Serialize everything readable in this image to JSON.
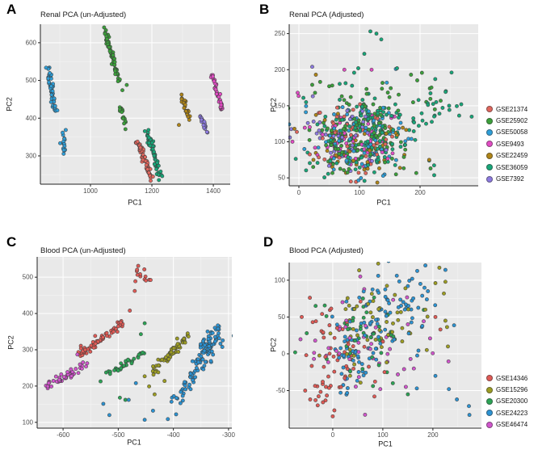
{
  "figure": {
    "panel_labels": [
      "A",
      "B",
      "C",
      "D"
    ],
    "panel_bg": "#e9e9e9",
    "grid_major_color": "#ffffff",
    "grid_minor_color": "#f4f4f4",
    "axis_color": "#222222",
    "tick_label_color": "#4d4d4d",
    "point_radius": 2.1,
    "point_stroke": "#3c3c3c"
  },
  "series_colors": {
    "GSE21374": "#e1665d",
    "GSE25902": "#3ba03a",
    "GSE50058": "#2e9fd9",
    "GSE9493": "#e24bc4",
    "GSE22459": "#b08516",
    "GSE36059": "#17a779",
    "GSE7392": "#8d7ae1",
    "GSE14346": "#e05a55",
    "GSE15296": "#9d9d22",
    "GSE20300": "#2ba455",
    "GSE24223": "#2b93d3",
    "GSE46474": "#d155cd"
  },
  "legends": [
    {
      "id": "renal-legend",
      "items": [
        {
          "label": "GSE21374",
          "color": "#e1665d"
        },
        {
          "label": "GSE25902",
          "color": "#3ba03a"
        },
        {
          "label": "GSE50058",
          "color": "#2e9fd9"
        },
        {
          "label": "GSE9493",
          "color": "#e24bc4"
        },
        {
          "label": "GSE22459",
          "color": "#b08516"
        },
        {
          "label": "GSE36059",
          "color": "#17a779"
        },
        {
          "label": "GSE7392",
          "color": "#8d7ae1"
        }
      ]
    },
    {
      "id": "blood-legend",
      "items": [
        {
          "label": "GSE14346",
          "color": "#e05a55"
        },
        {
          "label": "GSE15296",
          "color": "#9d9d22"
        },
        {
          "label": "GSE20300",
          "color": "#2ba455"
        },
        {
          "label": "GSE24223",
          "color": "#2b93d3"
        },
        {
          "label": "GSE46474",
          "color": "#d155cd"
        }
      ]
    }
  ],
  "chart_data": [
    {
      "panel": "A",
      "type": "scatter",
      "title": "Renal PCA (un-Adjusted)",
      "xlabel": "PC1",
      "ylabel": "PC2",
      "x_ticks": [
        1000,
        1200,
        1400
      ],
      "y_ticks": [
        300,
        400,
        500,
        600
      ],
      "x_range": [
        837,
        1455
      ],
      "y_range": [
        225,
        649
      ],
      "grid": true,
      "legend_position": "none",
      "seed": 7,
      "mix": false,
      "clusters": [
        {
          "kind": "streak",
          "series": "GSE50058",
          "n": 55,
          "x1": 858,
          "y1": 540,
          "x2": 886,
          "y2": 416,
          "jx": 7,
          "jy": 11
        },
        {
          "kind": "blob",
          "series": "GSE50058",
          "n": 16,
          "cx": 913,
          "cy": 330,
          "sx": 5,
          "sy": 15
        },
        {
          "kind": "streak",
          "series": "GSE25902",
          "n": 62,
          "x1": 1048,
          "y1": 628,
          "x2": 1094,
          "y2": 500,
          "jx": 8,
          "jy": 12
        },
        {
          "kind": "streak",
          "series": "GSE25902",
          "n": 15,
          "x1": 1098,
          "y1": 428,
          "x2": 1116,
          "y2": 374,
          "jx": 5,
          "jy": 7
        },
        {
          "kind": "streak",
          "series": "GSE21374",
          "n": 58,
          "x1": 1147,
          "y1": 350,
          "x2": 1200,
          "y2": 240,
          "jx": 7,
          "jy": 9
        },
        {
          "kind": "streak",
          "series": "GSE36059",
          "n": 65,
          "x1": 1185,
          "y1": 365,
          "x2": 1228,
          "y2": 245,
          "jx": 8,
          "jy": 10
        },
        {
          "kind": "streak",
          "series": "GSE22459",
          "n": 28,
          "x1": 1296,
          "y1": 458,
          "x2": 1326,
          "y2": 390,
          "jx": 5,
          "jy": 8
        },
        {
          "kind": "streak",
          "series": "GSE7392",
          "n": 18,
          "x1": 1356,
          "y1": 412,
          "x2": 1378,
          "y2": 366,
          "jx": 4,
          "jy": 6
        },
        {
          "kind": "streak",
          "series": "GSE9493",
          "n": 40,
          "x1": 1398,
          "y1": 514,
          "x2": 1428,
          "y2": 420,
          "jx": 5,
          "jy": 9
        }
      ],
      "outliers": [
        {
          "series": "GSE22459",
          "pts": [
            [
              1288,
              382
            ]
          ]
        },
        {
          "series": "GSE25902",
          "pts": [
            [
              1118,
              488
            ],
            [
              1104,
              474
            ]
          ]
        }
      ]
    },
    {
      "panel": "B",
      "type": "scatter",
      "title": "Renal PCA (Adjusted)",
      "xlabel": "PC1",
      "ylabel": "PC2",
      "x_ticks": [
        0,
        100,
        200
      ],
      "y_ticks": [
        50,
        100,
        150,
        200,
        250
      ],
      "x_range": [
        -16,
        296
      ],
      "y_range": [
        39,
        263
      ],
      "grid": true,
      "legend_position": "right",
      "seed": 13,
      "mix": true,
      "clusters": [
        {
          "kind": "blob",
          "series": "GSE36059",
          "n": 150,
          "cx": 100,
          "cy": 110,
          "sx": 48,
          "sy": 32
        },
        {
          "kind": "blob",
          "series": "GSE36059",
          "n": 16,
          "cx": 235,
          "cy": 150,
          "sx": 30,
          "sy": 18
        },
        {
          "kind": "blob",
          "series": "GSE25902",
          "n": 140,
          "cx": 95,
          "cy": 112,
          "sx": 44,
          "sy": 30
        },
        {
          "kind": "blob",
          "series": "GSE25902",
          "n": 10,
          "cx": 190,
          "cy": 160,
          "sx": 25,
          "sy": 15
        },
        {
          "kind": "blob",
          "series": "GSE50058",
          "n": 85,
          "cx": 100,
          "cy": 103,
          "sx": 38,
          "sy": 24
        },
        {
          "kind": "blob",
          "series": "GSE9493",
          "n": 55,
          "cx": 88,
          "cy": 100,
          "sx": 38,
          "sy": 24
        },
        {
          "kind": "blob",
          "series": "GSE21374",
          "n": 55,
          "cx": 92,
          "cy": 104,
          "sx": 40,
          "sy": 26
        },
        {
          "kind": "blob",
          "series": "GSE22459",
          "n": 50,
          "cx": 95,
          "cy": 102,
          "sx": 42,
          "sy": 26
        },
        {
          "kind": "blob",
          "series": "GSE7392",
          "n": 40,
          "cx": 86,
          "cy": 100,
          "sx": 34,
          "sy": 22
        }
      ],
      "outliers": [
        {
          "series": "GSE36059",
          "pts": [
            [
              118,
              253
            ],
            [
              128,
              250
            ],
            [
              136,
              242
            ],
            [
              108,
              222
            ],
            [
              98,
              202
            ],
            [
              252,
              196
            ],
            [
              225,
              187
            ],
            [
              268,
              152
            ],
            [
              248,
              150
            ],
            [
              232,
              139
            ],
            [
              210,
              125
            ],
            [
              162,
              202
            ],
            [
              215,
              74
            ]
          ]
        },
        {
          "series": "GSE25902",
          "pts": [
            [
              35,
              183
            ],
            [
              22,
              179
            ],
            [
              55,
              178
            ],
            [
              185,
              193
            ]
          ]
        },
        {
          "series": "GSE7392",
          "pts": [
            [
              22,
              204
            ]
          ]
        },
        {
          "series": "GSE22459",
          "pts": [
            [
              28,
              193
            ],
            [
              215,
              75
            ]
          ]
        },
        {
          "series": "GSE9493",
          "pts": [
            [
              -2,
              168
            ],
            [
              75,
              200
            ],
            [
              120,
              200
            ]
          ]
        },
        {
          "series": "GSE50058",
          "pts": [
            [
              160,
              201
            ],
            [
              145,
              182
            ]
          ]
        }
      ]
    },
    {
      "panel": "C",
      "type": "scatter",
      "title": "Blood PCA (un-Adjusted)",
      "xlabel": "PC1",
      "ylabel": "PC2",
      "x_ticks": [
        -600,
        -500,
        -400,
        -300
      ],
      "y_ticks": [
        100,
        200,
        300,
        400,
        500
      ],
      "x_range": [
        -647,
        -294
      ],
      "y_range": [
        84,
        556
      ],
      "grid": true,
      "legend_position": "none",
      "seed": 21,
      "mix": false,
      "clusters": [
        {
          "kind": "streak",
          "series": "GSE46474",
          "n": 45,
          "x1": -636,
          "y1": 192,
          "x2": -556,
          "y2": 262,
          "jx": 8,
          "jy": 12
        },
        {
          "kind": "streak",
          "series": "GSE14346",
          "n": 60,
          "x1": -576,
          "y1": 282,
          "x2": -484,
          "y2": 380,
          "jx": 8,
          "jy": 12
        },
        {
          "kind": "blob",
          "series": "GSE14346",
          "n": 13,
          "cx": -452,
          "cy": 500,
          "sx": 10,
          "sy": 13
        },
        {
          "kind": "streak",
          "series": "GSE20300",
          "n": 32,
          "x1": -525,
          "y1": 228,
          "x2": -448,
          "y2": 296,
          "jx": 7,
          "jy": 9
        },
        {
          "kind": "streak",
          "series": "GSE15296",
          "n": 60,
          "x1": -436,
          "y1": 240,
          "x2": -372,
          "y2": 340,
          "jx": 9,
          "jy": 11
        },
        {
          "kind": "streak",
          "series": "GSE24223",
          "n": 90,
          "x1": -396,
          "y1": 150,
          "x2": -316,
          "y2": 365,
          "jx": 11,
          "jy": 14
        },
        {
          "kind": "blob",
          "series": "GSE24223",
          "n": 28,
          "cx": -333,
          "cy": 310,
          "sx": 13,
          "sy": 20
        }
      ],
      "outliers": [
        {
          "series": "GSE14346",
          "pts": [
            [
              -470,
              462
            ],
            [
              -479,
              408
            ],
            [
              -560,
              300
            ]
          ]
        },
        {
          "series": "GSE46474",
          "pts": [
            [
              -652,
              192
            ],
            [
              -574,
              287
            ]
          ]
        },
        {
          "series": "GSE20300",
          "pts": [
            [
              -459,
              343
            ],
            [
              -452,
              373
            ],
            [
              -497,
              168
            ],
            [
              -487,
              162
            ],
            [
              -532,
              213
            ]
          ]
        },
        {
          "series": "GSE15296",
          "pts": [
            [
              -444,
              199
            ],
            [
              -434,
              177
            ],
            [
              -416,
              214
            ],
            [
              -452,
              227
            ]
          ]
        },
        {
          "series": "GSE24223",
          "pts": [
            [
              -527,
              151
            ],
            [
              -516,
              120
            ],
            [
              -481,
              162
            ],
            [
              -452,
              107
            ],
            [
              -437,
              132
            ],
            [
              -468,
              208
            ],
            [
              -410,
              109
            ],
            [
              -395,
              122
            ]
          ]
        }
      ]
    },
    {
      "panel": "D",
      "type": "scatter",
      "title": "Blood PCA (Adjusted)",
      "xlabel": "PC1",
      "ylabel": "PC2",
      "x_ticks": [
        0,
        100,
        200
      ],
      "y_ticks": [
        -50,
        0,
        50,
        100
      ],
      "x_range": [
        -87,
        297
      ],
      "y_range": [
        -101,
        124
      ],
      "grid": true,
      "legend_position": "right",
      "seed": 29,
      "mix": true,
      "clusters": [
        {
          "kind": "blob",
          "series": "GSE24223",
          "n": 75,
          "cx": 110,
          "cy": 60,
          "sx": 45,
          "sy": 32
        },
        {
          "kind": "blob",
          "series": "GSE24223",
          "n": 45,
          "cx": 38,
          "cy": -5,
          "sx": 22,
          "sy": 20
        },
        {
          "kind": "blob",
          "series": "GSE14346",
          "n": 45,
          "cx": 30,
          "cy": 12,
          "sx": 40,
          "sy": 30
        },
        {
          "kind": "blob",
          "series": "GSE14346",
          "n": 14,
          "cx": -12,
          "cy": -45,
          "sx": 16,
          "sy": 14
        },
        {
          "kind": "blob",
          "series": "GSE15296",
          "n": 55,
          "cx": 90,
          "cy": 42,
          "sx": 52,
          "sy": 32
        },
        {
          "kind": "blob",
          "series": "GSE20300",
          "n": 40,
          "cx": 60,
          "cy": 25,
          "sx": 48,
          "sy": 32
        },
        {
          "kind": "blob",
          "series": "GSE46474",
          "n": 48,
          "cx": 75,
          "cy": 18,
          "sx": 58,
          "sy": 33
        }
      ],
      "outliers": [
        {
          "series": "GSE24223",
          "pts": [
            [
              185,
              120
            ],
            [
              225,
              114
            ],
            [
              248,
              -62
            ],
            [
              272,
              -71
            ],
            [
              273,
              -83
            ],
            [
              232,
              -48
            ],
            [
              168,
              -47
            ],
            [
              205,
              -30
            ],
            [
              150,
              92
            ],
            [
              175,
              95
            ],
            [
              190,
              85
            ]
          ]
        },
        {
          "series": "GSE15296",
          "pts": [
            [
              213,
              117
            ],
            [
              205,
              96
            ],
            [
              222,
              82
            ],
            [
              230,
              10
            ],
            [
              225,
              45
            ],
            [
              185,
              60
            ]
          ]
        },
        {
          "series": "GSE14346",
          "pts": [
            [
              -62,
              50
            ],
            [
              -40,
              43
            ],
            [
              205,
              50
            ],
            [
              215,
              33
            ],
            [
              0,
              -85
            ],
            [
              -30,
              -70
            ],
            [
              -45,
              -62
            ],
            [
              -55,
              -50
            ],
            [
              -20,
              -38
            ]
          ]
        },
        {
          "series": "GSE20300",
          "pts": [
            [
              -75,
              2
            ],
            [
              150,
              -55
            ],
            [
              120,
              -40
            ],
            [
              -52,
              28
            ]
          ]
        },
        {
          "series": "GSE46474",
          "pts": [
            [
              55,
              105
            ],
            [
              150,
              40
            ],
            [
              162,
              -20
            ],
            [
              130,
              -28
            ],
            [
              -35,
              18
            ],
            [
              95,
              -48
            ]
          ]
        }
      ]
    }
  ]
}
